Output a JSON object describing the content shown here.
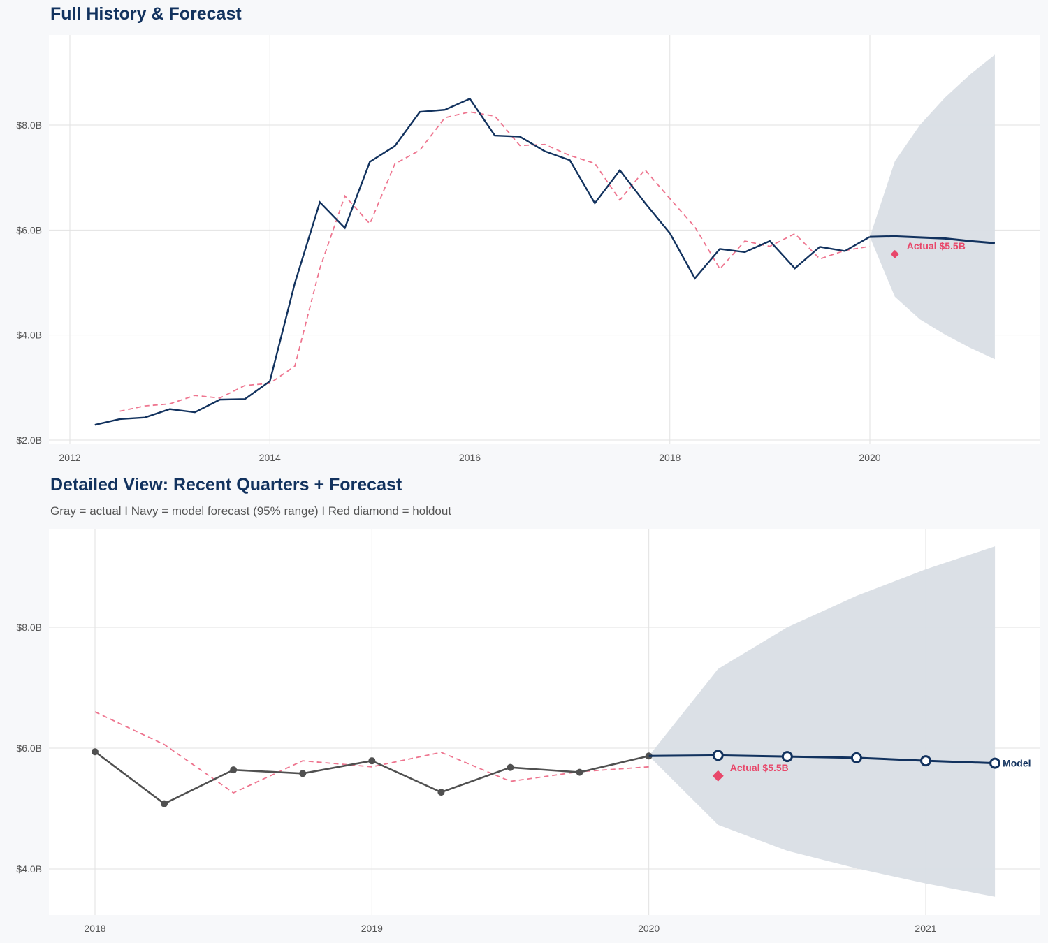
{
  "colors": {
    "navy": "#12325e",
    "gray_actual": "#505050",
    "red": "#e8476a",
    "band": "#d9dee5",
    "grid": "#e2e2e2"
  },
  "chart_data": [
    {
      "type": "line",
      "title": "Full History & Forecast",
      "xlim": [
        2011.8,
        2021.6
      ],
      "ylim": [
        2.0,
        9.4
      ],
      "x_ticks": [
        2012,
        2014,
        2016,
        2018,
        2020
      ],
      "x_tick_labels": [
        "2012",
        "2014",
        "2016",
        "2018",
        "2020"
      ],
      "y_ticks": [
        2,
        4,
        6,
        8
      ],
      "y_tick_labels": [
        "$2.0B",
        "$4.0B",
        "$6.0B",
        "$8.0B"
      ],
      "grid": true,
      "series": [
        {
          "role": "actual",
          "style": "navy-solid",
          "x": [
            2012.25,
            2012.5,
            2012.75,
            2013,
            2013.25,
            2013.5,
            2013.75,
            2014,
            2014.25,
            2014.5,
            2014.75,
            2015,
            2015.25,
            2015.5,
            2015.75,
            2016,
            2016.25,
            2016.5,
            2016.75,
            2017,
            2017.25,
            2017.5,
            2017.75,
            2018,
            2018.25,
            2018.5,
            2018.75,
            2019,
            2019.25,
            2019.5,
            2019.75,
            2020
          ],
          "y": [
            2.29,
            2.4,
            2.43,
            2.59,
            2.53,
            2.77,
            2.78,
            3.12,
            4.99,
            6.53,
            6.04,
            7.3,
            7.6,
            8.25,
            8.29,
            8.5,
            7.8,
            7.78,
            7.5,
            7.33,
            6.51,
            7.14,
            6.52,
            5.94,
            5.08,
            5.64,
            5.58,
            5.79,
            5.27,
            5.68,
            5.6,
            5.87
          ]
        },
        {
          "role": "fitted",
          "style": "red-dashed",
          "x": [
            2012.5,
            2012.75,
            2013,
            2013.25,
            2013.5,
            2013.75,
            2014,
            2014.25,
            2014.5,
            2014.75,
            2015,
            2015.25,
            2015.5,
            2015.75,
            2016,
            2016.25,
            2016.5,
            2016.75,
            2017,
            2017.25,
            2017.5,
            2017.75,
            2018,
            2018.25,
            2018.5,
            2018.75,
            2019,
            2019.25,
            2019.5,
            2019.75,
            2020
          ],
          "y": [
            2.55,
            2.65,
            2.69,
            2.85,
            2.8,
            3.04,
            3.08,
            3.41,
            5.27,
            6.65,
            6.12,
            7.26,
            7.52,
            8.14,
            8.25,
            8.17,
            7.61,
            7.63,
            7.42,
            7.27,
            6.57,
            7.15,
            6.6,
            6.06,
            5.26,
            5.79,
            5.69,
            5.93,
            5.45,
            5.61,
            5.69
          ]
        },
        {
          "role": "forecast",
          "style": "navy-thick",
          "x": [
            2020,
            2020.25,
            2020.5,
            2020.75,
            2021,
            2021.25
          ],
          "y": [
            5.87,
            5.88,
            5.86,
            5.84,
            5.79,
            5.75
          ],
          "lower": [
            5.87,
            4.73,
            4.3,
            4.01,
            3.76,
            3.54
          ],
          "upper": [
            5.87,
            7.31,
            8.0,
            8.52,
            8.96,
            9.34
          ]
        }
      ],
      "holdout": {
        "x": 2020.25,
        "y": 5.54,
        "label": "Actual $5.5B"
      }
    },
    {
      "type": "line",
      "title": "Detailed View: Recent Quarters + Forecast",
      "subtitle": "Gray = actual  I  Navy = model forecast (95% range)  I  Red diamond = holdout",
      "xlim": [
        2017.835,
        2021.41
      ],
      "ylim": [
        3.6,
        9.5
      ],
      "x_ticks": [
        2018,
        2019,
        2020,
        2021
      ],
      "x_tick_labels": [
        "2018",
        "2019",
        "2020",
        "2021"
      ],
      "y_ticks": [
        4,
        6,
        8
      ],
      "y_tick_labels": [
        "$4.0B",
        "$6.0B",
        "$8.0B"
      ],
      "grid": true,
      "series": [
        {
          "role": "actual",
          "style": "gray-markers",
          "x": [
            2018,
            2018.25,
            2018.5,
            2018.75,
            2019,
            2019.25,
            2019.5,
            2019.75,
            2020
          ],
          "y": [
            5.94,
            5.08,
            5.64,
            5.58,
            5.79,
            5.27,
            5.68,
            5.6,
            5.87
          ]
        },
        {
          "role": "fitted",
          "style": "red-dashed",
          "x": [
            2018,
            2018.25,
            2018.5,
            2018.75,
            2019,
            2019.25,
            2019.5,
            2019.75,
            2020
          ],
          "y": [
            6.6,
            6.06,
            5.26,
            5.79,
            5.69,
            5.93,
            5.45,
            5.61,
            5.69
          ]
        },
        {
          "role": "forecast",
          "style": "navy-open-markers",
          "end_label": "Model",
          "x": [
            2020,
            2020.25,
            2020.5,
            2020.75,
            2021,
            2021.25
          ],
          "y": [
            5.87,
            5.88,
            5.86,
            5.84,
            5.79,
            5.75
          ],
          "lower": [
            5.87,
            4.73,
            4.3,
            4.01,
            3.76,
            3.54
          ],
          "upper": [
            5.87,
            7.31,
            8.0,
            8.52,
            8.96,
            9.34
          ]
        }
      ],
      "holdout": {
        "x": 2020.25,
        "y": 5.54,
        "label": "Actual $5.5B"
      }
    }
  ]
}
